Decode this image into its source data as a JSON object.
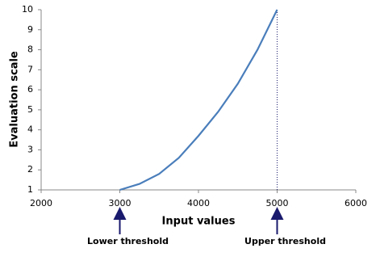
{
  "chart_data": {
    "type": "line",
    "x_label": "Input values",
    "y_label": "Evaluation scale",
    "x": [
      3000,
      3250,
      3500,
      3750,
      4000,
      4250,
      4500,
      4750,
      5000
    ],
    "series": [
      {
        "color": "#4a7ebb",
        "values": [
          1,
          1.3,
          1.8,
          2.6,
          3.7,
          4.9,
          6.3,
          8.0,
          10
        ]
      }
    ],
    "xlim": [
      2000,
      6000
    ],
    "xticks": [
      2000,
      3000,
      4000,
      5000,
      6000
    ],
    "ylim": [
      1,
      10
    ],
    "yticks": [
      1,
      2,
      3,
      4,
      5,
      6,
      7,
      8,
      9,
      10
    ],
    "reference_line_x": 5000,
    "annotations": [
      {
        "text": "Lower threshold",
        "x": 3000
      },
      {
        "text": "Upper threshold",
        "x": 5000
      }
    ]
  }
}
